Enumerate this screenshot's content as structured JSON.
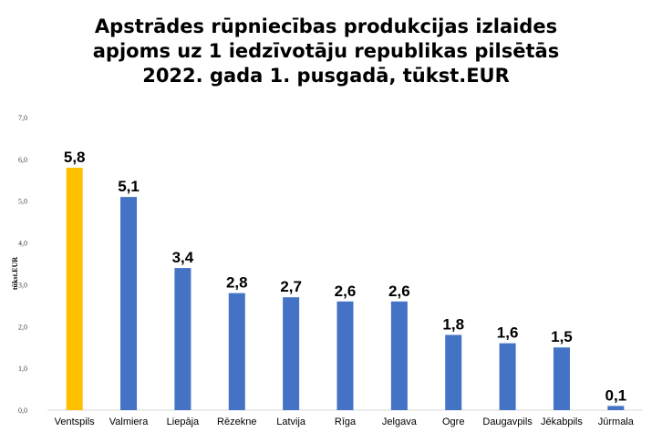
{
  "chart_data": {
    "type": "bar",
    "title": [
      "Apstrādes rūpniecības produkcijas izlaides",
      "apjoms uz 1 iedzīvotāju republikas pilsētās",
      "2022. gada 1. pusgadā, tūkst.EUR"
    ],
    "ylabel": "tūkst.EUR",
    "xlabel": "",
    "ylim": [
      0,
      7
    ],
    "yticks": [
      "0,0",
      "1,0",
      "2,0",
      "3,0",
      "4,0",
      "5,0",
      "6,0",
      "7,0"
    ],
    "categories": [
      "Ventspils",
      "Valmiera",
      "Liepāja",
      "Rēzekne",
      "Latvija",
      "Rīga",
      "Jelgava",
      "Ogre",
      "Daugavpils",
      "Jēkabpils",
      "Jūrmala"
    ],
    "values": [
      5.8,
      5.1,
      3.4,
      2.8,
      2.7,
      2.6,
      2.6,
      1.8,
      1.6,
      1.5,
      0.1
    ],
    "data_labels": [
      "5,8",
      "5,1",
      "3,4",
      "2,8",
      "2,7",
      "2,6",
      "2,6",
      "1,8",
      "1,6",
      "1,5",
      "0,1"
    ],
    "colors": [
      "#FFC000",
      "#4472C4",
      "#4472C4",
      "#4472C4",
      "#4472C4",
      "#4472C4",
      "#4472C4",
      "#4472C4",
      "#4472C4",
      "#4472C4",
      "#4472C4"
    ],
    "grid": false,
    "legend": "none"
  }
}
